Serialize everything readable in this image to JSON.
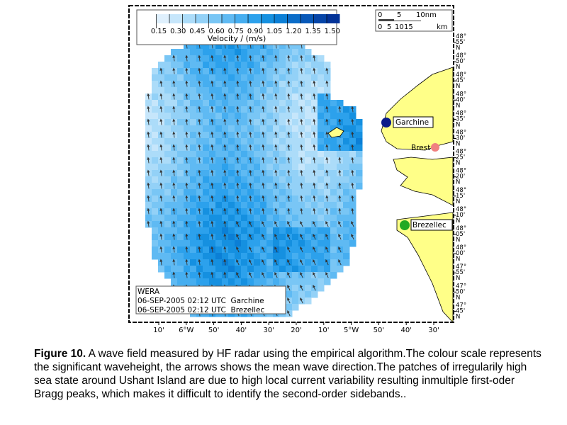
{
  "figure": {
    "label": "Figure 10.",
    "caption": " A wave field measured by HF radar using the empirical algorithm.The colour scale represents the significant waveheight, the arrows shows the mean wave direction.The patches of irregularily high sea state around Ushant Island are due to high local current variability resulting inmultiple first-oder Bragg peaks, which makes it difficult to identify the second-order sidebands.."
  },
  "colorbar": {
    "ticks": [
      "0.15",
      "0.30",
      "0.45",
      "0.60",
      "0.75",
      "0.90",
      "1.05",
      "1.20",
      "1.35",
      "1.50"
    ],
    "label": "Velocity / (m/s)"
  },
  "scalebar": {
    "nm": [
      "0",
      "5",
      "10nm"
    ],
    "km": [
      "0",
      "5",
      "10",
      "15",
      "km"
    ]
  },
  "stations": [
    {
      "name": "Garchine",
      "color": "#0a1a8a"
    },
    {
      "name": "Brest",
      "color": "#f08080"
    },
    {
      "name": "Brezellec",
      "color": "#22aa22"
    }
  ],
  "info": [
    "WERA",
    "06-SEP-2005 02:12 UTC  Garchine",
    "06-SEP-2005 02:12 UTC  Brezellec"
  ],
  "x_ticks": [
    "10'",
    "6°W",
    "50'",
    "40'",
    "30'",
    "20'",
    "10'",
    "5°W",
    "50'",
    "40'",
    "30'"
  ],
  "y_ticks": [
    [
      "48°",
      "55'",
      "N"
    ],
    [
      "48°",
      "50'",
      "N"
    ],
    [
      "48°",
      "45'",
      "N"
    ],
    [
      "48°",
      "40'",
      "N"
    ],
    [
      "48°",
      "35'",
      "N"
    ],
    [
      "48°",
      "30'",
      "N"
    ],
    [
      "48°",
      "25'",
      "N"
    ],
    [
      "48°",
      "20'",
      "N"
    ],
    [
      "48°",
      "15'",
      "N"
    ],
    [
      "48°",
      "10'",
      "N"
    ],
    [
      "48°",
      "05'",
      "N"
    ],
    [
      "48°",
      "00'",
      "N"
    ],
    [
      "47°",
      "55'",
      "N"
    ],
    [
      "47°",
      "50'",
      "N"
    ],
    [
      "47°",
      "45'",
      "N"
    ]
  ],
  "colors": {
    "land": "#ffff88",
    "scale": [
      "#ffffff",
      "#dff0fd",
      "#c6e6fb",
      "#acdcf9",
      "#93d1f7",
      "#79c6f5",
      "#5fbaf3",
      "#46aef0",
      "#2ca1ec",
      "#1590e0",
      "#0b7fd6",
      "#0a6cc8",
      "#0858b8",
      "#0645a8",
      "#033398"
    ]
  }
}
